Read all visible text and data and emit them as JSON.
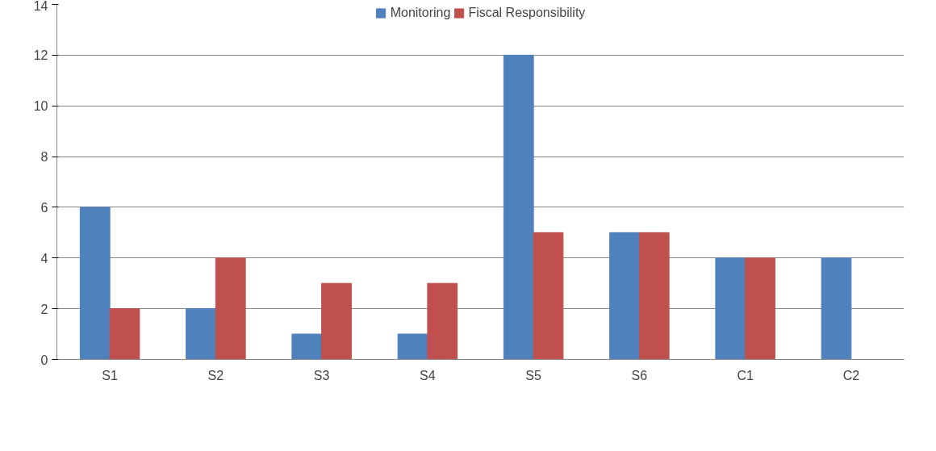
{
  "chart_data": {
    "type": "bar",
    "categories": [
      "S1",
      "S2",
      "S3",
      "S4",
      "S5",
      "S6",
      "C1",
      "C2"
    ],
    "series": [
      {
        "name": "Monitoring",
        "color": "#4f81bd",
        "values": [
          6,
          2,
          1,
          1,
          12,
          5,
          4,
          4
        ]
      },
      {
        "name": "Fiscal Responsibility",
        "color": "#c0504d",
        "values": [
          2,
          4,
          3,
          3,
          5,
          5,
          4,
          0
        ]
      }
    ],
    "ylim": [
      0,
      14
    ],
    "yticks": [
      0,
      2,
      4,
      6,
      8,
      10,
      12,
      14
    ],
    "grid": "y",
    "legend": "top"
  }
}
